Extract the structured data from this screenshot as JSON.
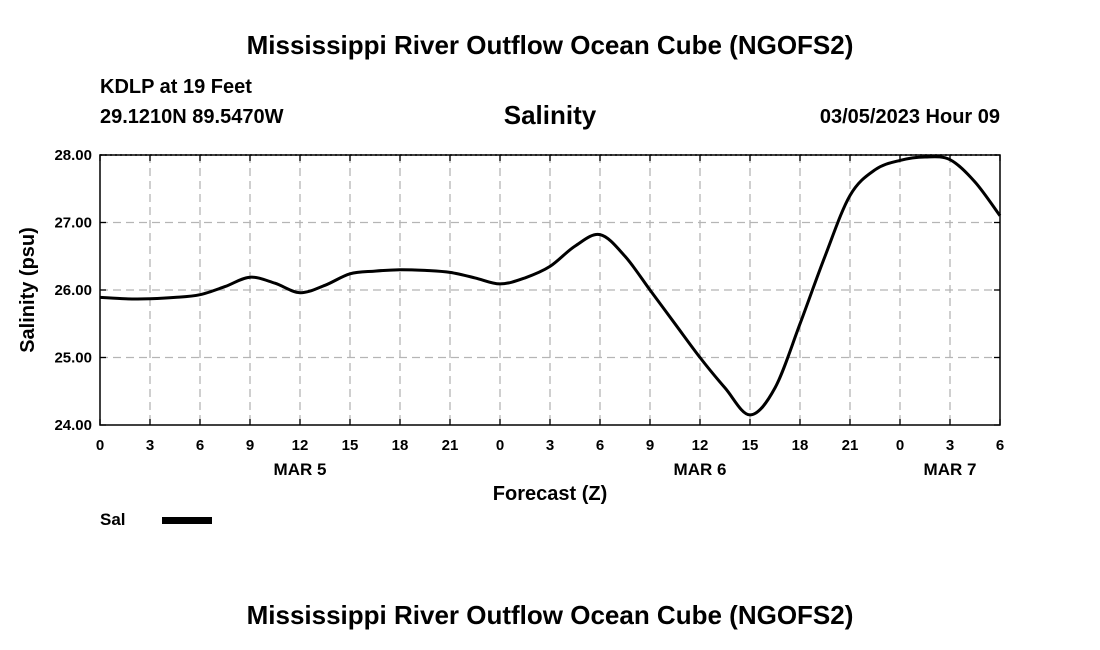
{
  "header": {
    "title": "Mississippi River Outflow Ocean Cube (NGOFS2)",
    "station": "KDLP at 19 Feet",
    "coordinates": "29.1210N  89.5470W",
    "variable": "Salinity",
    "datetime": "03/05/2023 Hour 09"
  },
  "footer": {
    "title": "Mississippi River Outflow Ocean Cube (NGOFS2)"
  },
  "chart_data": {
    "type": "line",
    "title": "Salinity",
    "xlabel": "Forecast (Z)",
    "ylabel": "Salinity (psu)",
    "xlim": [
      0,
      54
    ],
    "ylim": [
      24.0,
      28.0
    ],
    "grid": true,
    "legend_position": "bottom-left",
    "x_ticks": [
      0,
      3,
      6,
      9,
      12,
      15,
      18,
      21,
      24,
      27,
      30,
      33,
      36,
      39,
      42,
      45,
      48,
      51,
      54
    ],
    "x_tick_labels": [
      "0",
      "3",
      "6",
      "9",
      "12",
      "15",
      "18",
      "21",
      "0",
      "3",
      "6",
      "9",
      "12",
      "15",
      "18",
      "21",
      "0",
      "3",
      "6"
    ],
    "day_labels": [
      {
        "x": 12,
        "label": "MAR 5"
      },
      {
        "x": 36,
        "label": "MAR 6"
      },
      {
        "x": 51,
        "label": "MAR 7"
      }
    ],
    "y_ticks": [
      24.0,
      25.0,
      26.0,
      27.0,
      28.0
    ],
    "y_tick_labels": [
      "24.00",
      "25.00",
      "26.00",
      "27.00",
      "28.00"
    ],
    "series": [
      {
        "name": "Sal",
        "color": "#000000",
        "x": [
          0,
          1.5,
          3,
          4.5,
          6,
          7.5,
          9,
          10.5,
          12,
          13.5,
          15,
          16.5,
          18,
          19.5,
          21,
          22.5,
          24,
          25.5,
          27,
          28.5,
          30,
          31.5,
          33,
          34.5,
          36,
          37.5,
          39,
          40.5,
          42,
          43.5,
          45,
          46.5,
          48,
          49.5,
          51,
          52.5,
          54
        ],
        "y": [
          25.89,
          25.87,
          25.87,
          25.89,
          25.93,
          26.05,
          26.19,
          26.1,
          25.96,
          26.07,
          26.24,
          26.28,
          26.3,
          26.29,
          26.26,
          26.18,
          26.09,
          26.18,
          26.35,
          26.65,
          26.82,
          26.5,
          26.0,
          25.5,
          25.0,
          24.55,
          24.15,
          24.55,
          25.5,
          26.5,
          27.4,
          27.78,
          27.92,
          27.97,
          27.93,
          27.6,
          27.1
        ]
      }
    ]
  }
}
